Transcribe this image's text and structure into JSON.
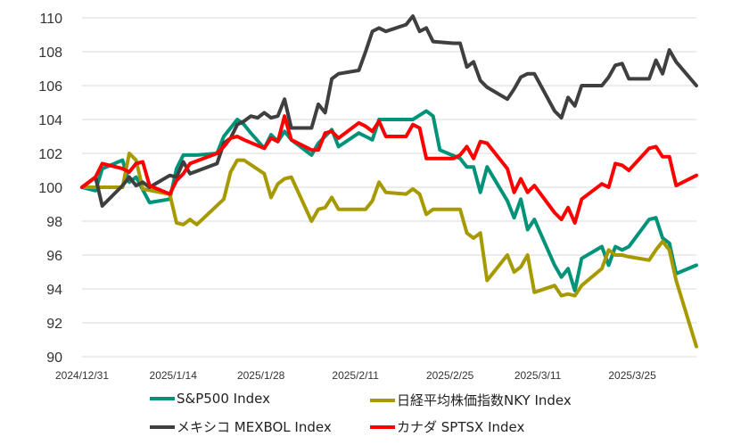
{
  "chart_data": {
    "type": "line",
    "title": "",
    "xlabel": "",
    "ylabel": "",
    "ylim": [
      90,
      110
    ],
    "y_ticks": [
      "90",
      "92",
      "94",
      "96",
      "98",
      "100",
      "102",
      "104",
      "106",
      "108",
      "110"
    ],
    "x_ticks": [
      "2024/12/31",
      "2025/1/14",
      "2025/1/28",
      "2025/2/11",
      "2025/2/25",
      "2025/3/11",
      "2025/3/25"
    ],
    "grid": "horizontal",
    "legend": "bottom",
    "colors": {
      "sp500": "#00937A",
      "nikkei": "#A69A00",
      "mexbol": "#3F3F3F",
      "sptsx": "#FF0000"
    },
    "series": [
      {
        "name": "S&P500 Index",
        "key": "sp500",
        "values": [
          [
            0,
            100
          ],
          [
            2,
            99.8
          ],
          [
            3,
            101.1
          ],
          [
            6,
            101.6
          ],
          [
            7,
            100.3
          ],
          [
            8,
            100.6
          ],
          [
            10,
            99.1
          ],
          [
            13,
            99.3
          ],
          [
            14,
            101.1
          ],
          [
            15,
            101.9
          ],
          [
            17,
            101.9
          ],
          [
            20,
            102.0
          ],
          [
            21,
            103.0
          ],
          [
            23,
            104.0
          ],
          [
            24,
            103.7
          ],
          [
            25,
            103.2
          ],
          [
            27,
            102.3
          ],
          [
            28,
            103.1
          ],
          [
            29,
            102.7
          ],
          [
            30,
            103.3
          ],
          [
            31,
            102.8
          ],
          [
            34,
            101.9
          ],
          [
            35,
            102.6
          ],
          [
            37,
            103.4
          ],
          [
            38,
            102.4
          ],
          [
            41,
            103.2
          ],
          [
            42,
            103.0
          ],
          [
            43,
            102.8
          ],
          [
            44,
            104.0
          ],
          [
            49,
            104.0
          ],
          [
            51,
            104.5
          ],
          [
            52,
            104.2
          ],
          [
            53,
            102.2
          ],
          [
            56,
            101.7
          ],
          [
            57,
            101.2
          ],
          [
            58,
            101.2
          ],
          [
            59,
            99.7
          ],
          [
            60,
            101.2
          ],
          [
            63,
            99.2
          ],
          [
            64,
            98.2
          ],
          [
            65,
            99.3
          ],
          [
            66,
            97.5
          ],
          [
            67,
            98.1
          ],
          [
            70,
            95.4
          ],
          [
            71,
            94.7
          ],
          [
            72,
            95.2
          ],
          [
            73,
            93.9
          ],
          [
            74,
            95.8
          ],
          [
            77,
            96.5
          ],
          [
            78,
            95.4
          ],
          [
            79,
            96.5
          ],
          [
            80,
            96.3
          ],
          [
            81,
            96.5
          ],
          [
            84,
            98.1
          ],
          [
            85,
            98.2
          ],
          [
            86,
            97.0
          ],
          [
            87,
            96.7
          ],
          [
            88,
            94.9
          ],
          [
            91,
            95.4
          ]
        ]
      },
      {
        "name": "日経平均株価指数NKY Index",
        "key": "nikkei",
        "values": [
          [
            0,
            100
          ],
          [
            3,
            100.0
          ],
          [
            6,
            100.0
          ],
          [
            7,
            102.0
          ],
          [
            8,
            101.6
          ],
          [
            9,
            99.9
          ],
          [
            13,
            99.6
          ],
          [
            14,
            97.9
          ],
          [
            15,
            97.8
          ],
          [
            16,
            98.1
          ],
          [
            17,
            97.8
          ],
          [
            21,
            99.3
          ],
          [
            22,
            100.9
          ],
          [
            23,
            101.6
          ],
          [
            24,
            101.6
          ],
          [
            27,
            100.8
          ],
          [
            28,
            99.4
          ],
          [
            29,
            100.2
          ],
          [
            30,
            100.5
          ],
          [
            31,
            100.6
          ],
          [
            34,
            98.0
          ],
          [
            35,
            98.7
          ],
          [
            36,
            98.8
          ],
          [
            37,
            99.4
          ],
          [
            38,
            98.7
          ],
          [
            42,
            98.7
          ],
          [
            43,
            99.2
          ],
          [
            44,
            100.3
          ],
          [
            45,
            99.7
          ],
          [
            48,
            99.6
          ],
          [
            49,
            99.9
          ],
          [
            50,
            99.6
          ],
          [
            51,
            98.4
          ],
          [
            52,
            98.7
          ],
          [
            53,
            98.7
          ],
          [
            56,
            98.7
          ],
          [
            57,
            97.3
          ],
          [
            58,
            97.0
          ],
          [
            59,
            97.3
          ],
          [
            60,
            94.5
          ],
          [
            63,
            96.0
          ],
          [
            64,
            95.0
          ],
          [
            65,
            95.3
          ],
          [
            66,
            96.0
          ],
          [
            67,
            93.8
          ],
          [
            70,
            94.2
          ],
          [
            71,
            93.6
          ],
          [
            72,
            93.7
          ],
          [
            73,
            93.6
          ],
          [
            74,
            94.2
          ],
          [
            77,
            95.2
          ],
          [
            78,
            96.3
          ],
          [
            79,
            96.0
          ],
          [
            80,
            96.0
          ],
          [
            81,
            95.9
          ],
          [
            84,
            95.7
          ],
          [
            85,
            96.3
          ],
          [
            86,
            96.8
          ],
          [
            87,
            96.3
          ],
          [
            88,
            94.5
          ],
          [
            91,
            90.6
          ]
        ]
      },
      {
        "name": "メキシコ MEXBOL Index",
        "key": "mexbol",
        "values": [
          [
            0,
            100
          ],
          [
            2,
            100.6
          ],
          [
            3,
            98.9
          ],
          [
            6,
            100.1
          ],
          [
            7,
            100.6
          ],
          [
            8,
            100.1
          ],
          [
            9,
            100.3
          ],
          [
            10,
            100.0
          ],
          [
            13,
            100.7
          ],
          [
            14,
            100.6
          ],
          [
            15,
            101.5
          ],
          [
            16,
            100.8
          ],
          [
            20,
            101.4
          ],
          [
            21,
            102.6
          ],
          [
            22,
            102.9
          ],
          [
            23,
            103.7
          ],
          [
            24,
            103.9
          ],
          [
            25,
            104.2
          ],
          [
            26,
            104.1
          ],
          [
            27,
            104.4
          ],
          [
            28,
            104.1
          ],
          [
            29,
            104.2
          ],
          [
            30,
            105.2
          ],
          [
            31,
            103.5
          ],
          [
            34,
            103.5
          ],
          [
            35,
            104.9
          ],
          [
            36,
            104.4
          ],
          [
            37,
            106.4
          ],
          [
            38,
            106.7
          ],
          [
            41,
            106.9
          ],
          [
            42,
            108.0
          ],
          [
            43,
            109.2
          ],
          [
            44,
            109.4
          ],
          [
            45,
            109.2
          ],
          [
            48,
            109.6
          ],
          [
            49,
            110.1
          ],
          [
            50,
            109.2
          ],
          [
            51,
            109.4
          ],
          [
            52,
            108.6
          ],
          [
            55,
            108.5
          ],
          [
            56,
            108.5
          ],
          [
            57,
            107.1
          ],
          [
            58,
            107.4
          ],
          [
            59,
            106.3
          ],
          [
            60,
            105.9
          ],
          [
            63,
            105.2
          ],
          [
            64,
            105.8
          ],
          [
            65,
            106.5
          ],
          [
            66,
            106.7
          ],
          [
            67,
            106.7
          ],
          [
            70,
            104.5
          ],
          [
            71,
            104.1
          ],
          [
            72,
            105.3
          ],
          [
            73,
            104.8
          ],
          [
            74,
            106.0
          ],
          [
            77,
            106.0
          ],
          [
            78,
            106.5
          ],
          [
            79,
            107.2
          ],
          [
            80,
            107.3
          ],
          [
            81,
            106.4
          ],
          [
            84,
            106.4
          ],
          [
            85,
            107.5
          ],
          [
            86,
            106.7
          ],
          [
            87,
            108.1
          ],
          [
            88,
            107.4
          ],
          [
            91,
            106.0
          ]
        ]
      },
      {
        "name": "カナダ SPTSX Index",
        "key": "sptsx",
        "values": [
          [
            0,
            100
          ],
          [
            2,
            100.6
          ],
          [
            3,
            101.4
          ],
          [
            6,
            101.1
          ],
          [
            7,
            100.9
          ],
          [
            8,
            101.4
          ],
          [
            9,
            101.5
          ],
          [
            10,
            100.1
          ],
          [
            13,
            99.6
          ],
          [
            14,
            100.4
          ],
          [
            15,
            100.8
          ],
          [
            16,
            101.4
          ],
          [
            20,
            102.0
          ],
          [
            21,
            102.4
          ],
          [
            22,
            102.9
          ],
          [
            23,
            103.0
          ],
          [
            24,
            102.8
          ],
          [
            27,
            102.3
          ],
          [
            28,
            102.9
          ],
          [
            29,
            102.7
          ],
          [
            30,
            104.2
          ],
          [
            31,
            102.8
          ],
          [
            34,
            102.2
          ],
          [
            35,
            102.2
          ],
          [
            36,
            103.2
          ],
          [
            37,
            103.3
          ],
          [
            38,
            102.9
          ],
          [
            41,
            103.8
          ],
          [
            42,
            103.6
          ],
          [
            43,
            103.3
          ],
          [
            44,
            103.9
          ],
          [
            45,
            103.0
          ],
          [
            48,
            103.0
          ],
          [
            49,
            103.7
          ],
          [
            50,
            103.5
          ],
          [
            51,
            101.7
          ],
          [
            52,
            101.7
          ],
          [
            55,
            101.7
          ],
          [
            56,
            101.9
          ],
          [
            57,
            102.4
          ],
          [
            58,
            101.7
          ],
          [
            59,
            102.7
          ],
          [
            60,
            102.6
          ],
          [
            63,
            101.1
          ],
          [
            64,
            99.7
          ],
          [
            65,
            100.5
          ],
          [
            66,
            99.7
          ],
          [
            67,
            100.1
          ],
          [
            70,
            98.5
          ],
          [
            71,
            98.1
          ],
          [
            72,
            98.8
          ],
          [
            73,
            97.9
          ],
          [
            74,
            99.3
          ],
          [
            77,
            100.2
          ],
          [
            78,
            100.0
          ],
          [
            79,
            101.4
          ],
          [
            80,
            101.3
          ],
          [
            81,
            101.0
          ],
          [
            84,
            102.3
          ],
          [
            85,
            102.4
          ],
          [
            86,
            101.8
          ],
          [
            87,
            101.8
          ],
          [
            88,
            100.1
          ],
          [
            91,
            100.7
          ]
        ]
      }
    ]
  }
}
